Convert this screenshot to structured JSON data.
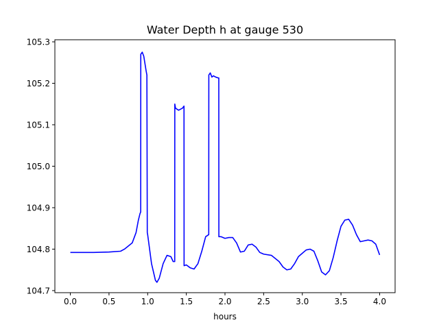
{
  "chart_data": {
    "type": "line",
    "title": "Water Depth h at gauge 530",
    "xlabel": "hours",
    "ylabel": "",
    "xlim": [
      -0.2,
      4.2
    ],
    "ylim": [
      104.695,
      105.305
    ],
    "xticks": [
      0.0,
      0.5,
      1.0,
      1.5,
      2.0,
      2.5,
      3.0,
      3.5,
      4.0
    ],
    "xtick_labels": [
      "0.0",
      "0.5",
      "1.0",
      "1.5",
      "2.0",
      "2.5",
      "3.0",
      "3.5",
      "4.0"
    ],
    "yticks": [
      104.7,
      104.8,
      104.9,
      105.0,
      105.1,
      105.2,
      105.3
    ],
    "ytick_labels": [
      "104.7",
      "104.8",
      "104.9",
      "105.0",
      "105.1",
      "105.2",
      "105.3"
    ],
    "grid": false,
    "legend": "none",
    "series": [
      {
        "color": "#0000ff",
        "x": [
          0.0,
          0.3,
          0.5,
          0.65,
          0.7,
          0.8,
          0.85,
          0.88,
          0.9,
          0.91,
          0.911,
          0.93,
          0.95,
          0.98,
          0.99,
          0.995,
          1.0,
          1.05,
          1.1,
          1.12,
          1.15,
          1.2,
          1.25,
          1.3,
          1.33,
          1.35,
          1.351,
          1.36,
          1.4,
          1.45,
          1.47,
          1.471,
          1.5,
          1.55,
          1.6,
          1.65,
          1.7,
          1.75,
          1.79,
          1.791,
          1.81,
          1.83,
          1.85,
          1.88,
          1.91,
          1.92,
          1.921,
          1.95,
          2.0,
          2.05,
          2.1,
          2.15,
          2.2,
          2.25,
          2.3,
          2.35,
          2.4,
          2.45,
          2.5,
          2.6,
          2.7,
          2.75,
          2.8,
          2.85,
          2.9,
          2.95,
          3.0,
          3.05,
          3.1,
          3.15,
          3.2,
          3.25,
          3.3,
          3.35,
          3.4,
          3.45,
          3.5,
          3.55,
          3.6,
          3.65,
          3.7,
          3.75,
          3.8,
          3.85,
          3.9,
          3.95,
          4.0
        ],
        "y": [
          104.792,
          104.792,
          104.793,
          104.795,
          104.8,
          104.815,
          104.84,
          104.87,
          104.885,
          104.89,
          105.27,
          105.275,
          105.265,
          105.23,
          105.22,
          104.84,
          104.835,
          104.765,
          104.725,
          104.72,
          104.73,
          104.765,
          104.785,
          104.782,
          104.77,
          104.77,
          105.15,
          105.14,
          105.135,
          105.14,
          105.145,
          104.76,
          104.762,
          104.755,
          104.752,
          104.765,
          104.795,
          104.83,
          104.835,
          105.22,
          105.225,
          105.215,
          105.218,
          105.215,
          105.213,
          105.213,
          104.83,
          104.83,
          104.826,
          104.828,
          104.828,
          104.815,
          104.793,
          104.795,
          104.81,
          104.812,
          104.805,
          104.792,
          104.788,
          104.785,
          104.77,
          104.757,
          104.75,
          104.752,
          104.765,
          104.782,
          104.79,
          104.798,
          104.8,
          104.795,
          104.772,
          104.745,
          104.738,
          104.748,
          104.78,
          104.82,
          104.855,
          104.87,
          104.872,
          104.858,
          104.835,
          104.818,
          104.82,
          104.822,
          104.82,
          104.812,
          104.786
        ]
      }
    ]
  }
}
